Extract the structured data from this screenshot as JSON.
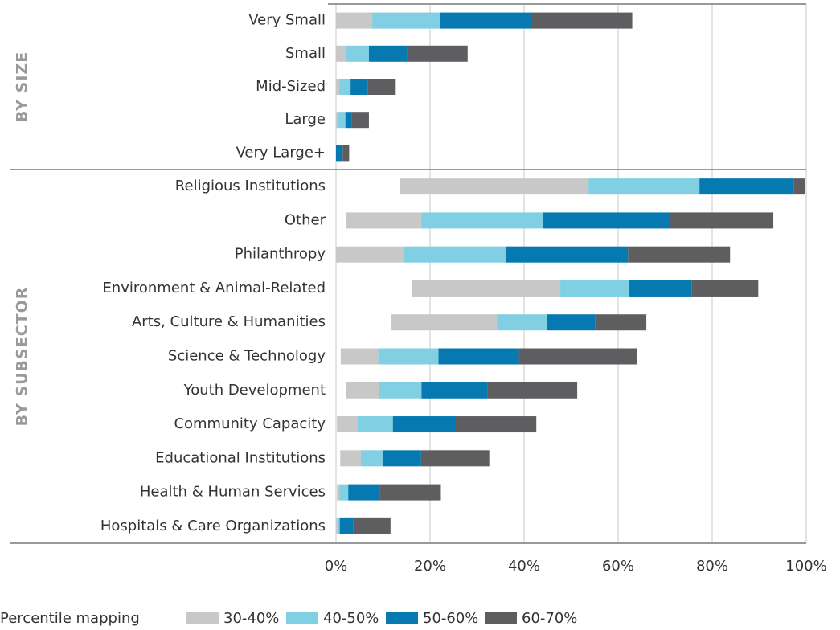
{
  "chart_data": {
    "type": "floating_stacked_barh",
    "groups": [
      {
        "label": "BY SIZE",
        "categories": [
          "Very Small",
          "Small",
          "Mid-Sized",
          "Large",
          "Very Large+"
        ]
      },
      {
        "label": "BY SUBSECTOR",
        "categories": [
          "Religious Institutions",
          "Other",
          "Philanthropy",
          "Environment & Animal-Related",
          "Arts, Culture & Humanities",
          "Science & Technology",
          "Youth Development",
          "Community Capacity",
          "Educational Institutions",
          "Health & Human Services",
          "Hospitals & Care Organizations"
        ]
      }
    ],
    "starts": [
      0,
      0,
      0,
      0,
      0,
      13.5,
      2.2,
      0,
      16.1,
      11.8,
      1.0,
      2.1,
      0.2,
      0.9,
      0.2,
      0
    ],
    "series": [
      {
        "name": "30-40%",
        "color": "#c8c8c8",
        "values": [
          7.7,
          2.2,
          0.7,
          0.3,
          0,
          40.2,
          15.9,
          14.4,
          31.6,
          22.4,
          8.0,
          7.0,
          4.4,
          4.4,
          0.5,
          0.3
        ]
      },
      {
        "name": "40-50%",
        "color": "#80cfe2",
        "values": [
          14.5,
          4.8,
          2.4,
          1.7,
          0,
          23.6,
          26.0,
          21.7,
          14.7,
          10.6,
          12.8,
          9.1,
          7.5,
          4.6,
          1.9,
          0.5
        ]
      },
      {
        "name": "50-60%",
        "color": "#0679b0",
        "values": [
          19.3,
          8.2,
          3.6,
          1.4,
          1.4,
          20.0,
          27.0,
          26.0,
          13.2,
          10.3,
          17.1,
          14.0,
          13.2,
          8.2,
          6.7,
          2.9
        ]
      },
      {
        "name": "60-70%",
        "color": "#5e5e60",
        "values": [
          21.5,
          12.8,
          6.0,
          3.6,
          1.4,
          2.4,
          21.9,
          21.7,
          14.2,
          10.9,
          25.1,
          19.1,
          17.3,
          14.5,
          13.0,
          7.9
        ]
      }
    ],
    "xlim": [
      0,
      100
    ],
    "xticks": [
      {
        "value": 0,
        "label": "0%"
      },
      {
        "value": 20,
        "label": "20%"
      },
      {
        "value": 40,
        "label": "40%"
      },
      {
        "value": 60,
        "label": "60%"
      },
      {
        "value": 80,
        "label": "80%"
      },
      {
        "value": 100,
        "label": "100%"
      }
    ],
    "grid": true,
    "legend_title": "Percentile mapping"
  }
}
